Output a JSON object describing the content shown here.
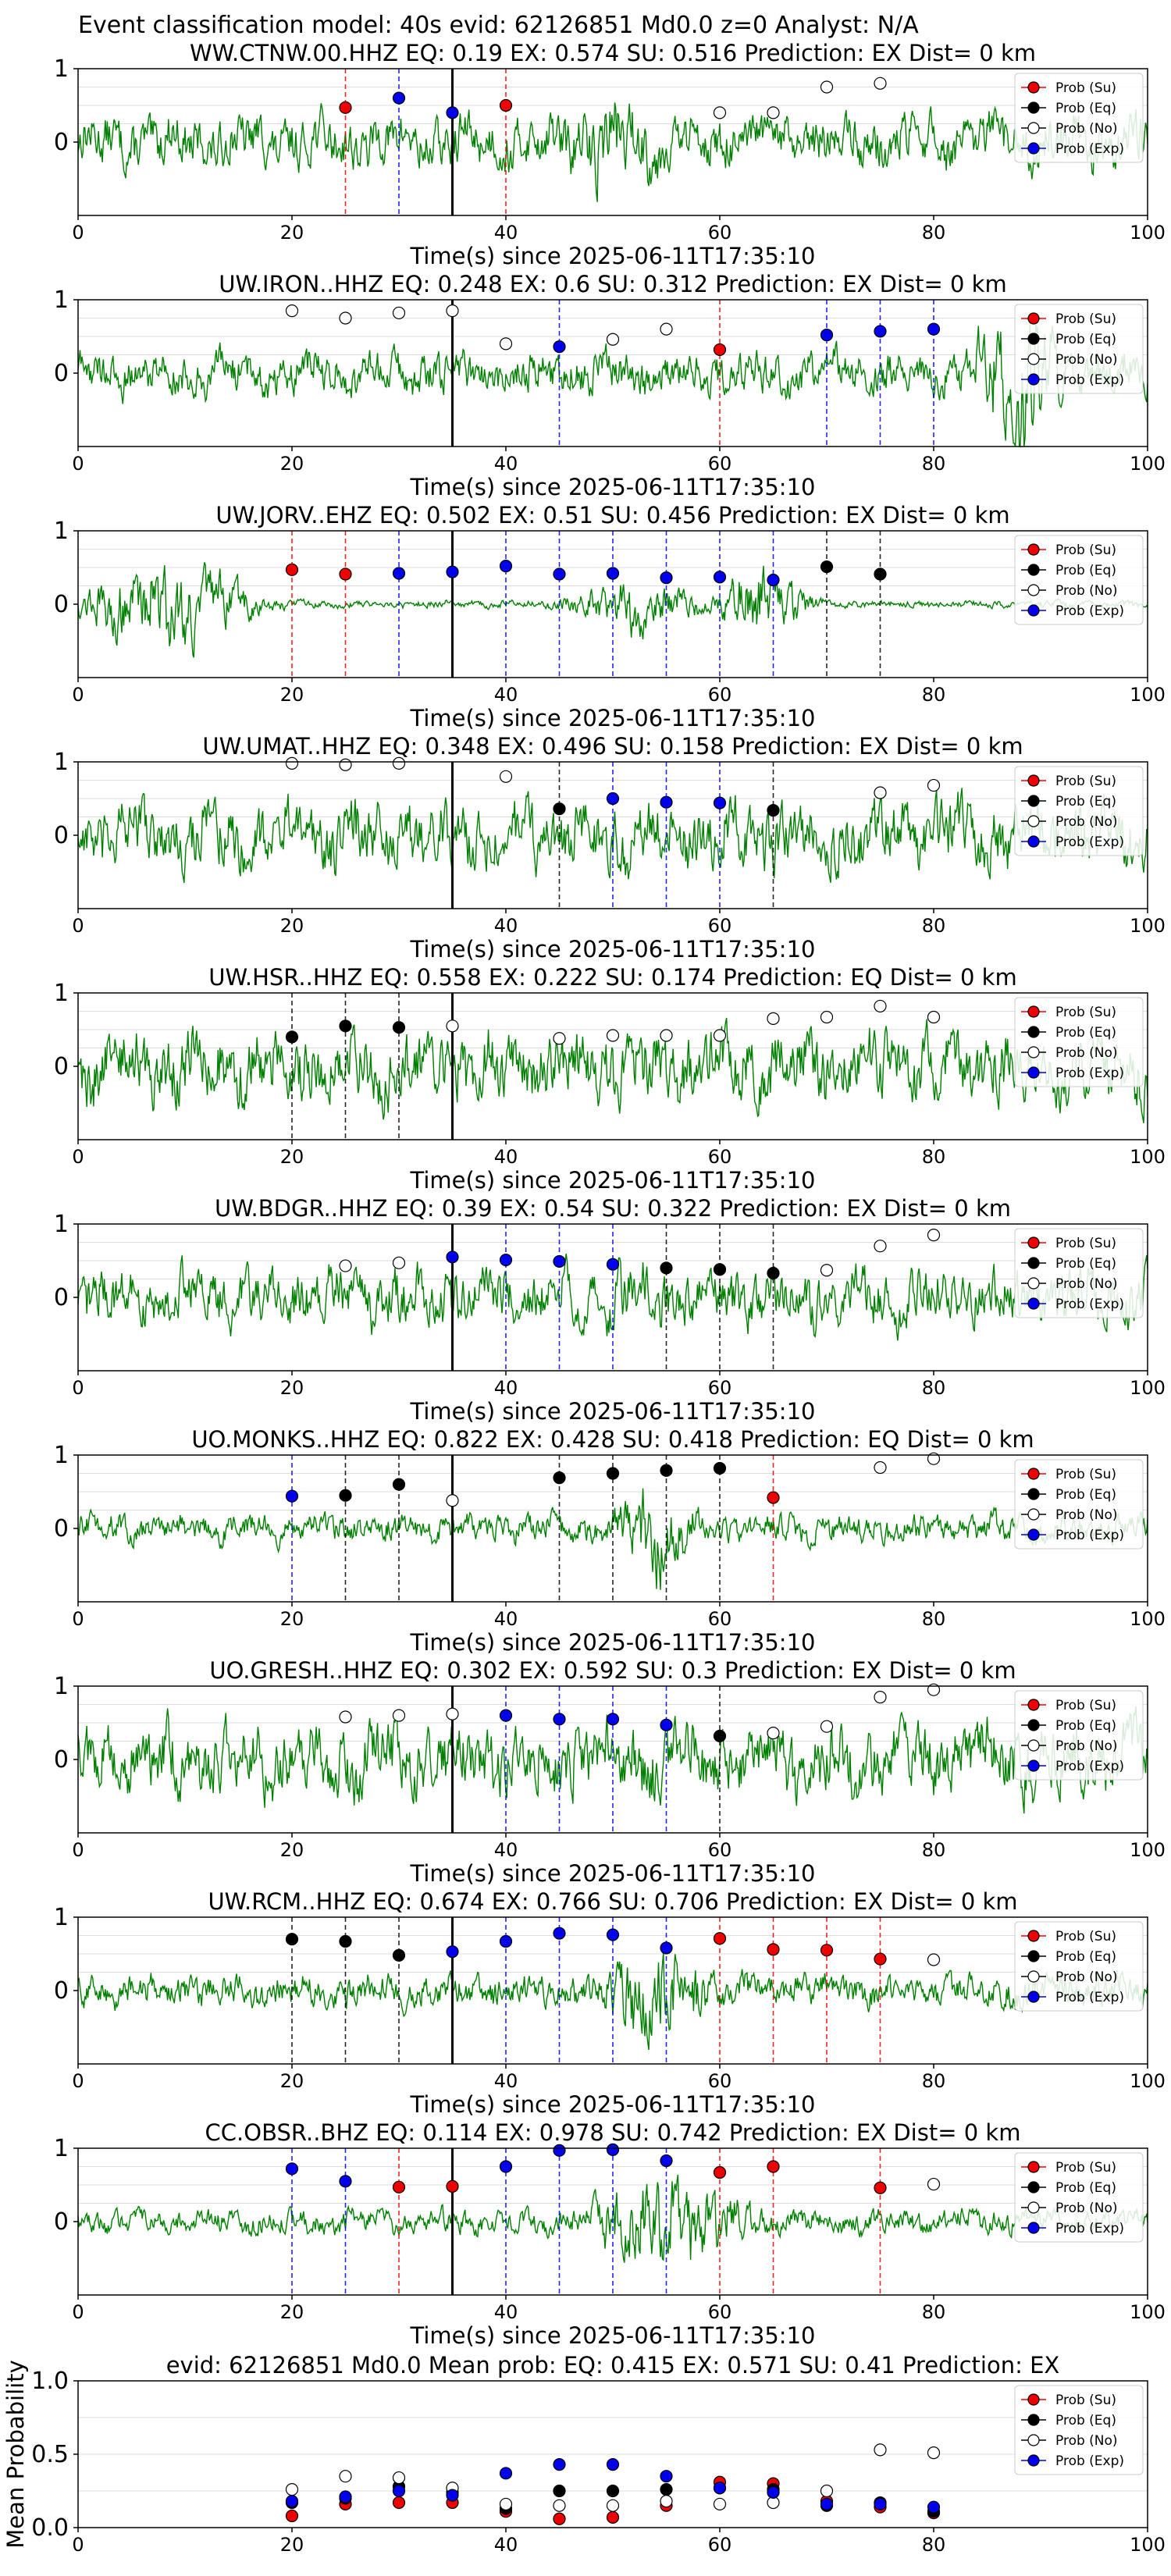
{
  "suptitle": "Event classification model: 40s evid: 62126851 Md0.0 z=0 Analyst: N/A",
  "colors": {
    "su": "#ee0000",
    "eq": "#000000",
    "no": "#ffffff",
    "exp": "#0000ee",
    "trace": "#008000",
    "arrival": "#000000"
  },
  "legend": [
    "Prob (Su)",
    "Prob (Eq)",
    "Prob (No)",
    "Prob (Exp)"
  ],
  "chart_data": [
    {
      "type": "line",
      "title": "WW.CTNW.00.HHZ   EQ: 0.19  EX: 0.574  SU: 0.516   Prediction: EX    Dist= 0 km",
      "xlabel": "Time(s) since 2025-06-11T17:35:10",
      "xlim": [
        0,
        100
      ],
      "xticks": [
        0,
        20,
        40,
        60,
        80,
        100
      ],
      "ylim": [
        -1,
        1
      ],
      "yticks": [
        0,
        1
      ],
      "arrival": 35,
      "amp": 0.55,
      "bursts": [
        [
          50,
          0.9,
          8
        ]
      ],
      "markers": [
        {
          "t": 25,
          "p": 0.47,
          "c": "su"
        },
        {
          "t": 30,
          "p": 0.6,
          "c": "exp"
        },
        {
          "t": 35,
          "p": 0.4,
          "c": "exp"
        },
        {
          "t": 40,
          "p": 0.5,
          "c": "su"
        },
        {
          "t": 60,
          "p": 0.4,
          "c": "no"
        },
        {
          "t": 65,
          "p": 0.4,
          "c": "no"
        },
        {
          "t": 70,
          "p": 0.75,
          "c": "no"
        },
        {
          "t": 75,
          "p": 0.8,
          "c": "no"
        }
      ]
    },
    {
      "type": "line",
      "title": "UW.IRON..HHZ   EQ: 0.248  EX: 0.6  SU: 0.312   Prediction: EX    Dist= 0 km",
      "xlabel": "Time(s) since 2025-06-11T17:35:10",
      "xlim": [
        0,
        100
      ],
      "xticks": [
        0,
        20,
        40,
        60,
        80,
        100
      ],
      "ylim": [
        -1,
        1
      ],
      "yticks": [
        0,
        1
      ],
      "arrival": 35,
      "amp": 0.45,
      "bursts": [
        [
          88,
          1.4,
          5
        ]
      ],
      "markers": [
        {
          "t": 20,
          "p": 0.85,
          "c": "no"
        },
        {
          "t": 25,
          "p": 0.75,
          "c": "no"
        },
        {
          "t": 30,
          "p": 0.82,
          "c": "no"
        },
        {
          "t": 35,
          "p": 0.85,
          "c": "no"
        },
        {
          "t": 40,
          "p": 0.4,
          "c": "no"
        },
        {
          "t": 45,
          "p": 0.36,
          "c": "exp"
        },
        {
          "t": 50,
          "p": 0.46,
          "c": "no"
        },
        {
          "t": 55,
          "p": 0.6,
          "c": "no"
        },
        {
          "t": 60,
          "p": 0.32,
          "c": "su"
        },
        {
          "t": 70,
          "p": 0.52,
          "c": "exp"
        },
        {
          "t": 75,
          "p": 0.57,
          "c": "exp"
        },
        {
          "t": 80,
          "p": 0.6,
          "c": "exp"
        }
      ]
    },
    {
      "type": "line",
      "title": "UW.JORV..EHZ   EQ: 0.502  EX: 0.51  SU: 0.456   Prediction: EX    Dist= 0 km",
      "xlabel": "Time(s) since 2025-06-11T17:35:10",
      "xlim": [
        0,
        100
      ],
      "xticks": [
        0,
        20,
        40,
        60,
        80,
        100
      ],
      "ylim": [
        -1,
        1
      ],
      "yticks": [
        0,
        1
      ],
      "arrival": 35,
      "amp": 0.08,
      "bursts": [
        [
          8,
          0.9,
          8
        ],
        [
          52,
          0.6,
          6
        ],
        [
          64,
          0.8,
          4
        ]
      ],
      "markers": [
        {
          "t": 20,
          "p": 0.47,
          "c": "su"
        },
        {
          "t": 25,
          "p": 0.41,
          "c": "su"
        },
        {
          "t": 30,
          "p": 0.42,
          "c": "exp"
        },
        {
          "t": 35,
          "p": 0.44,
          "c": "exp"
        },
        {
          "t": 40,
          "p": 0.52,
          "c": "exp"
        },
        {
          "t": 45,
          "p": 0.41,
          "c": "exp"
        },
        {
          "t": 50,
          "p": 0.42,
          "c": "exp"
        },
        {
          "t": 55,
          "p": 0.36,
          "c": "exp"
        },
        {
          "t": 60,
          "p": 0.37,
          "c": "exp"
        },
        {
          "t": 65,
          "p": 0.33,
          "c": "exp"
        },
        {
          "t": 70,
          "p": 0.51,
          "c": "eq"
        },
        {
          "t": 75,
          "p": 0.41,
          "c": "eq"
        }
      ]
    },
    {
      "type": "line",
      "title": "UW.UMAT..HHZ   EQ: 0.348  EX: 0.496  SU: 0.158   Prediction: EX    Dist= 0 km",
      "xlabel": "Time(s) since 2025-06-11T17:35:10",
      "xlim": [
        0,
        100
      ],
      "xticks": [
        0,
        20,
        40,
        60,
        80,
        100
      ],
      "ylim": [
        -1,
        1
      ],
      "yticks": [
        0,
        1
      ],
      "arrival": 35,
      "amp": 0.7,
      "bursts": [],
      "markers": [
        {
          "t": 20,
          "p": 0.98,
          "c": "no"
        },
        {
          "t": 25,
          "p": 0.96,
          "c": "no"
        },
        {
          "t": 30,
          "p": 0.98,
          "c": "no"
        },
        {
          "t": 40,
          "p": 0.8,
          "c": "no"
        },
        {
          "t": 45,
          "p": 0.36,
          "c": "eq"
        },
        {
          "t": 50,
          "p": 0.5,
          "c": "exp"
        },
        {
          "t": 55,
          "p": 0.45,
          "c": "exp"
        },
        {
          "t": 60,
          "p": 0.44,
          "c": "exp"
        },
        {
          "t": 65,
          "p": 0.34,
          "c": "eq"
        },
        {
          "t": 75,
          "p": 0.58,
          "c": "no"
        },
        {
          "t": 80,
          "p": 0.68,
          "c": "no"
        }
      ]
    },
    {
      "type": "line",
      "title": "UW.HSR..HHZ   EQ: 0.558  EX: 0.222  SU: 0.174   Prediction: EQ    Dist= 0 km",
      "xlabel": "Time(s) since 2025-06-11T17:35:10",
      "xlim": [
        0,
        100
      ],
      "xticks": [
        0,
        20,
        40,
        60,
        80,
        100
      ],
      "ylim": [
        -1,
        1
      ],
      "yticks": [
        0,
        1
      ],
      "arrival": 35,
      "amp": 0.75,
      "bursts": [],
      "markers": [
        {
          "t": 20,
          "p": 0.4,
          "c": "eq"
        },
        {
          "t": 25,
          "p": 0.55,
          "c": "eq"
        },
        {
          "t": 30,
          "p": 0.53,
          "c": "eq"
        },
        {
          "t": 35,
          "p": 0.55,
          "c": "no"
        },
        {
          "t": 45,
          "p": 0.38,
          "c": "no"
        },
        {
          "t": 50,
          "p": 0.42,
          "c": "no"
        },
        {
          "t": 55,
          "p": 0.42,
          "c": "no"
        },
        {
          "t": 60,
          "p": 0.42,
          "c": "no"
        },
        {
          "t": 65,
          "p": 0.65,
          "c": "no"
        },
        {
          "t": 70,
          "p": 0.67,
          "c": "no"
        },
        {
          "t": 75,
          "p": 0.82,
          "c": "no"
        },
        {
          "t": 80,
          "p": 0.67,
          "c": "no"
        }
      ]
    },
    {
      "type": "line",
      "title": "UW.BDGR..HHZ   EQ: 0.39  EX: 0.54  SU: 0.322   Prediction: EX    Dist= 0 km",
      "xlabel": "Time(s) since 2025-06-11T17:35:10",
      "xlim": [
        0,
        100
      ],
      "xticks": [
        0,
        20,
        40,
        60,
        80,
        100
      ],
      "ylim": [
        -1,
        1
      ],
      "yticks": [
        0,
        1
      ],
      "arrival": 35,
      "amp": 0.6,
      "bursts": [
        [
          52,
          0.8,
          6
        ]
      ],
      "markers": [
        {
          "t": 25,
          "p": 0.43,
          "c": "no"
        },
        {
          "t": 30,
          "p": 0.47,
          "c": "no"
        },
        {
          "t": 35,
          "p": 0.55,
          "c": "exp"
        },
        {
          "t": 40,
          "p": 0.51,
          "c": "exp"
        },
        {
          "t": 45,
          "p": 0.49,
          "c": "exp"
        },
        {
          "t": 50,
          "p": 0.45,
          "c": "exp"
        },
        {
          "t": 55,
          "p": 0.4,
          "c": "eq"
        },
        {
          "t": 60,
          "p": 0.38,
          "c": "eq"
        },
        {
          "t": 65,
          "p": 0.33,
          "c": "eq"
        },
        {
          "t": 70,
          "p": 0.37,
          "c": "no"
        },
        {
          "t": 75,
          "p": 0.7,
          "c": "no"
        },
        {
          "t": 80,
          "p": 0.85,
          "c": "no"
        }
      ]
    },
    {
      "type": "line",
      "title": "UO.MONKS..HHZ   EQ: 0.822  EX: 0.428  SU: 0.418   Prediction: EQ    Dist= 0 km",
      "xlabel": "Time(s) since 2025-06-11T17:35:10",
      "xlim": [
        0,
        100
      ],
      "xticks": [
        0,
        20,
        40,
        60,
        80,
        100
      ],
      "ylim": [
        -1,
        1
      ],
      "yticks": [
        0,
        1
      ],
      "arrival": 35,
      "amp": 0.3,
      "bursts": [
        [
          54,
          1.0,
          4
        ]
      ],
      "markers": [
        {
          "t": 20,
          "p": 0.44,
          "c": "exp"
        },
        {
          "t": 25,
          "p": 0.45,
          "c": "eq"
        },
        {
          "t": 30,
          "p": 0.6,
          "c": "eq"
        },
        {
          "t": 35,
          "p": 0.38,
          "c": "no"
        },
        {
          "t": 45,
          "p": 0.69,
          "c": "eq"
        },
        {
          "t": 50,
          "p": 0.75,
          "c": "eq"
        },
        {
          "t": 55,
          "p": 0.79,
          "c": "eq"
        },
        {
          "t": 60,
          "p": 0.82,
          "c": "eq"
        },
        {
          "t": 65,
          "p": 0.42,
          "c": "su"
        },
        {
          "t": 75,
          "p": 0.83,
          "c": "no"
        },
        {
          "t": 80,
          "p": 0.95,
          "c": "no"
        }
      ]
    },
    {
      "type": "line",
      "title": "UO.GRESH..HHZ   EQ: 0.302  EX: 0.592  SU: 0.3   Prediction: EX    Dist= 0 km",
      "xlabel": "Time(s) since 2025-06-11T17:35:10",
      "xlim": [
        0,
        100
      ],
      "xticks": [
        0,
        20,
        40,
        60,
        80,
        100
      ],
      "ylim": [
        -1,
        1
      ],
      "yticks": [
        0,
        1
      ],
      "arrival": 35,
      "amp": 0.75,
      "bursts": [
        [
          54,
          0.9,
          5
        ]
      ],
      "markers": [
        {
          "t": 25,
          "p": 0.58,
          "c": "no"
        },
        {
          "t": 30,
          "p": 0.6,
          "c": "no"
        },
        {
          "t": 35,
          "p": 0.62,
          "c": "no"
        },
        {
          "t": 40,
          "p": 0.6,
          "c": "exp"
        },
        {
          "t": 45,
          "p": 0.55,
          "c": "exp"
        },
        {
          "t": 50,
          "p": 0.55,
          "c": "exp"
        },
        {
          "t": 55,
          "p": 0.47,
          "c": "exp"
        },
        {
          "t": 60,
          "p": 0.32,
          "c": "eq"
        },
        {
          "t": 65,
          "p": 0.36,
          "c": "no"
        },
        {
          "t": 70,
          "p": 0.45,
          "c": "no"
        },
        {
          "t": 75,
          "p": 0.85,
          "c": "no"
        },
        {
          "t": 80,
          "p": 0.95,
          "c": "no"
        }
      ]
    },
    {
      "type": "line",
      "title": "UW.RCM..HHZ   EQ: 0.674  EX: 0.766  SU: 0.706   Prediction: EX    Dist= 0 km",
      "xlabel": "Time(s) since 2025-06-11T17:35:10",
      "xlim": [
        0,
        100
      ],
      "xticks": [
        0,
        20,
        40,
        60,
        80,
        100
      ],
      "ylim": [
        -1,
        1
      ],
      "yticks": [
        0,
        1
      ],
      "arrival": 35,
      "amp": 0.35,
      "bursts": [
        [
          54,
          1.0,
          6
        ]
      ],
      "markers": [
        {
          "t": 20,
          "p": 0.7,
          "c": "eq"
        },
        {
          "t": 25,
          "p": 0.67,
          "c": "eq"
        },
        {
          "t": 30,
          "p": 0.48,
          "c": "eq"
        },
        {
          "t": 35,
          "p": 0.53,
          "c": "exp"
        },
        {
          "t": 40,
          "p": 0.67,
          "c": "exp"
        },
        {
          "t": 45,
          "p": 0.78,
          "c": "exp"
        },
        {
          "t": 50,
          "p": 0.76,
          "c": "exp"
        },
        {
          "t": 55,
          "p": 0.58,
          "c": "exp"
        },
        {
          "t": 60,
          "p": 0.71,
          "c": "su"
        },
        {
          "t": 65,
          "p": 0.56,
          "c": "su"
        },
        {
          "t": 70,
          "p": 0.55,
          "c": "su"
        },
        {
          "t": 75,
          "p": 0.43,
          "c": "su"
        },
        {
          "t": 80,
          "p": 0.42,
          "c": "no"
        }
      ]
    },
    {
      "type": "line",
      "title": "CC.OBSR..BHZ   EQ: 0.114  EX: 0.978  SU: 0.742   Prediction: EX    Dist= 0 km",
      "xlabel": "Time(s) since 2025-06-11T17:35:10",
      "xlim": [
        0,
        100
      ],
      "xticks": [
        0,
        20,
        40,
        60,
        80,
        100
      ],
      "ylim": [
        -1,
        1
      ],
      "yticks": [
        0,
        1
      ],
      "arrival": 35,
      "amp": 0.25,
      "bursts": [
        [
          55,
          1.0,
          8
        ]
      ],
      "markers": [
        {
          "t": 20,
          "p": 0.72,
          "c": "exp"
        },
        {
          "t": 25,
          "p": 0.55,
          "c": "exp"
        },
        {
          "t": 30,
          "p": 0.47,
          "c": "su"
        },
        {
          "t": 35,
          "p": 0.48,
          "c": "su"
        },
        {
          "t": 40,
          "p": 0.75,
          "c": "exp"
        },
        {
          "t": 45,
          "p": 0.97,
          "c": "exp"
        },
        {
          "t": 50,
          "p": 0.98,
          "c": "exp"
        },
        {
          "t": 55,
          "p": 0.83,
          "c": "exp"
        },
        {
          "t": 60,
          "p": 0.67,
          "c": "su"
        },
        {
          "t": 65,
          "p": 0.75,
          "c": "su"
        },
        {
          "t": 75,
          "p": 0.46,
          "c": "su"
        },
        {
          "t": 80,
          "p": 0.51,
          "c": "no"
        }
      ]
    },
    {
      "type": "scatter",
      "title": "evid: 62126851  Md0.0   Mean prob:   EQ: 0.415  EX: 0.571  SU: 0.41   Prediction: EX",
      "ylabel": "Mean Probability",
      "xlim": [
        0,
        100
      ],
      "xticks": [
        0,
        20,
        40,
        60,
        80,
        100
      ],
      "ylim": [
        0,
        1
      ],
      "yticks": [
        "0.0",
        "0.5",
        "1.0"
      ],
      "x": [
        20,
        25,
        30,
        35,
        40,
        45,
        50,
        55,
        60,
        65,
        70,
        75,
        80
      ],
      "series": [
        {
          "name": "Prob (Su)",
          "c": "su",
          "values": [
            0.08,
            0.16,
            0.17,
            0.17,
            0.11,
            0.06,
            0.07,
            0.15,
            0.31,
            0.3,
            0.18,
            0.14,
            0.1
          ]
        },
        {
          "name": "Prob (Eq)",
          "c": "eq",
          "values": [
            0.17,
            0.2,
            0.28,
            0.24,
            0.13,
            0.25,
            0.25,
            0.26,
            0.27,
            0.26,
            0.15,
            0.17,
            0.11
          ]
        },
        {
          "name": "Prob (No)",
          "c": "no",
          "values": [
            0.26,
            0.35,
            0.34,
            0.27,
            0.16,
            0.15,
            0.15,
            0.18,
            0.16,
            0.17,
            0.25,
            0.53,
            0.51
          ]
        },
        {
          "name": "Prob (Exp)",
          "c": "exp",
          "values": [
            0.18,
            0.21,
            0.25,
            0.22,
            0.37,
            0.43,
            0.43,
            0.35,
            0.27,
            0.24,
            0.16,
            0.16,
            0.14
          ]
        }
      ]
    }
  ]
}
